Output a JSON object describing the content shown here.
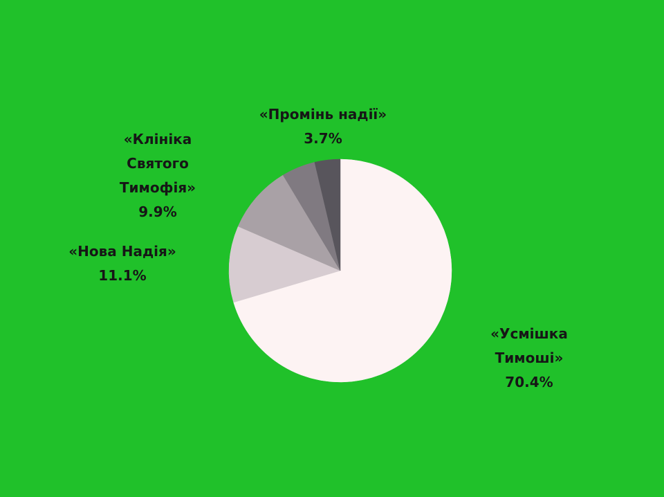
{
  "background_color": "#20c12a",
  "chart_data": {
    "type": "pie",
    "title": "",
    "start_angle_deg": 0,
    "direction": "clockwise",
    "slices": [
      {
        "label": "«Усмішка Тимоші»",
        "label_lines": [
          "«Усмішка",
          "Тимоші»"
        ],
        "percent_text": "70.4%",
        "value": 70.4,
        "color": "#fdf3f3"
      },
      {
        "label": "«Нова Надія»",
        "label_lines": [
          "«Нова Надія»"
        ],
        "percent_text": "11.1%",
        "value": 11.1,
        "color": "#d7ccd1"
      },
      {
        "label": "«Клініка Святого Тимофія»",
        "label_lines": [
          "«Клініка",
          "Святого",
          "Тимофія»"
        ],
        "percent_text": "9.9%",
        "value": 9.9,
        "color": "#a9a1a6"
      },
      {
        "label": "«Промінь надії»",
        "label_lines": [
          "«Промінь надії»"
        ],
        "percent_text": "",
        "value": 4.9,
        "color": "#807a81"
      },
      {
        "label": "«Промінь надії»",
        "label_lines": [],
        "percent_text": "3.7%",
        "value": 3.7,
        "color": "#58555c"
      }
    ]
  }
}
